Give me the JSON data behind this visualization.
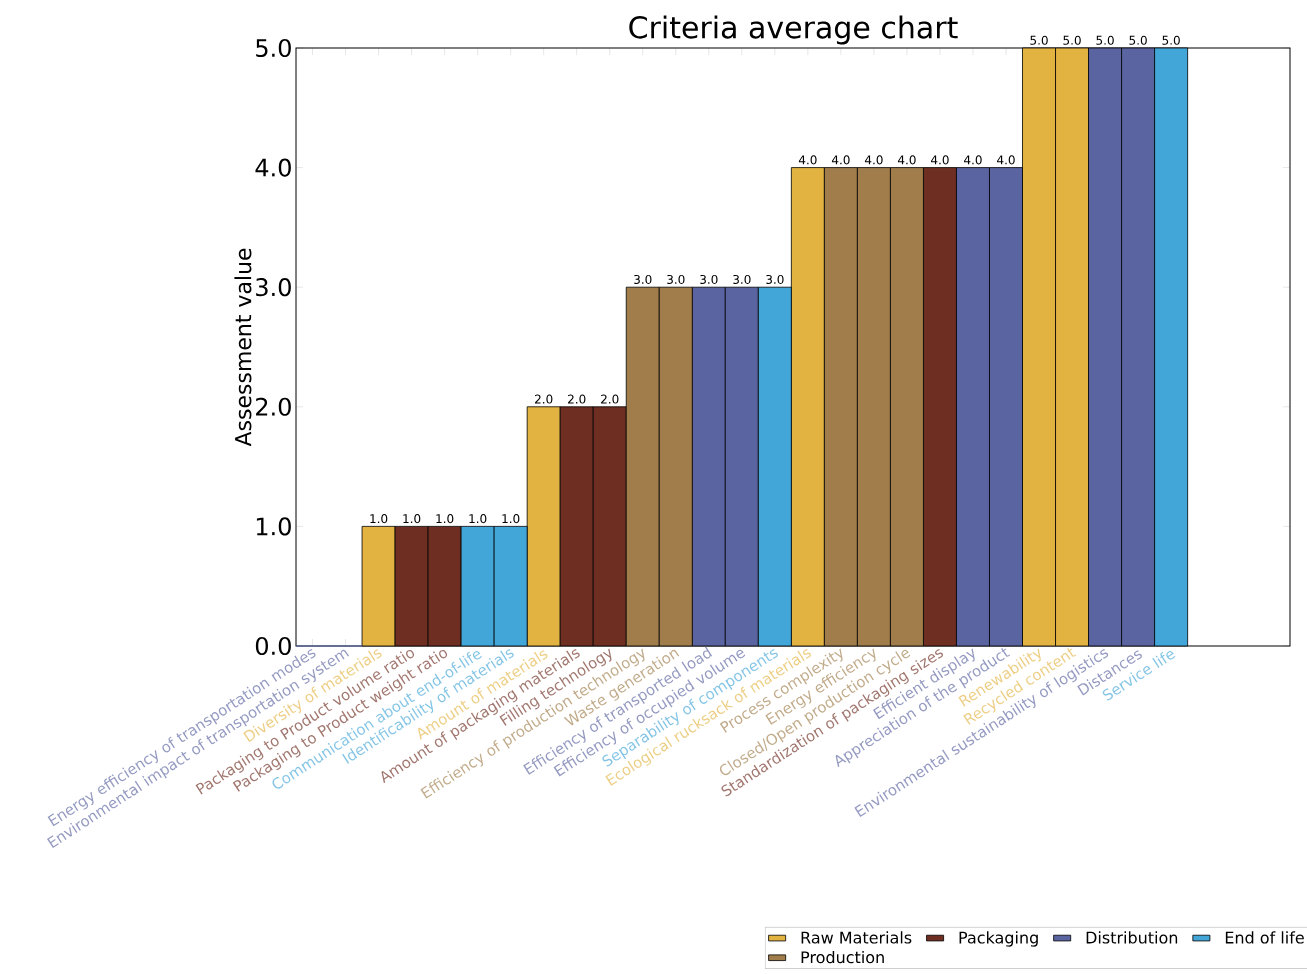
{
  "chart_data": {
    "type": "bar",
    "title": "Criteria average chart",
    "ylabel": "Assessment value",
    "categories": [
      "Energy efficiency of transportation modes",
      "Environmental impact of transportation system",
      "Diversity of materials",
      "Packaging to Product volume ratio",
      "Packaging to Product weight ratio",
      "Communication about end-of-life",
      "Identificability of materials",
      "Amount of materials",
      "Amount of packaging materials",
      "Filling technology",
      "Efficiency of production technology",
      "Waste generation",
      "Efficiency of transported load",
      "Efficiency of occupied volume",
      "Separability of components",
      "Ecological rucksack of materials",
      "Process complexity",
      "Energy efficiency",
      "Closed/Open production cycle",
      "Standardization of packaging sizes",
      "Efficient display",
      "Appreciation of the product",
      "Renewability",
      "Recycled content",
      "Environmental sustainability of logistics",
      "Distances",
      "Service life"
    ],
    "series": [
      {
        "name": "Raw Materials",
        "color": "#e3b341",
        "values": [
          null,
          null,
          1.0,
          null,
          null,
          null,
          null,
          2.0,
          null,
          null,
          null,
          null,
          null,
          null,
          null,
          4.0,
          null,
          null,
          null,
          null,
          null,
          null,
          5.0,
          5.0,
          null,
          null,
          null
        ],
        "value_labels": [
          null,
          null,
          "1.0",
          null,
          null,
          null,
          null,
          "2.0",
          null,
          null,
          null,
          null,
          null,
          null,
          null,
          "4.0",
          null,
          null,
          null,
          null,
          null,
          null,
          "5.0",
          "5.0",
          null,
          null,
          null
        ]
      },
      {
        "name": "Packaging",
        "color": "#6e2e22",
        "values": [
          null,
          null,
          null,
          1.0,
          1.0,
          null,
          null,
          null,
          2.0,
          2.0,
          null,
          null,
          null,
          null,
          null,
          null,
          null,
          null,
          null,
          4.0,
          null,
          null,
          null,
          null,
          null,
          null,
          null
        ],
        "value_labels": [
          null,
          null,
          null,
          "1.0",
          "1.0",
          null,
          null,
          null,
          "2.0",
          "2.0",
          null,
          null,
          null,
          null,
          null,
          null,
          null,
          null,
          null,
          "4.0",
          null,
          null,
          null,
          null,
          null,
          null,
          null
        ]
      },
      {
        "name": "Distribution",
        "color": "#5a64a0",
        "values": [
          0,
          0,
          null,
          null,
          null,
          null,
          null,
          null,
          null,
          null,
          null,
          null,
          3.0,
          3.0,
          null,
          null,
          null,
          null,
          null,
          null,
          4.0,
          4.0,
          null,
          null,
          5.0,
          5.0,
          null
        ],
        "value_labels": [
          null,
          null,
          null,
          null,
          null,
          null,
          null,
          null,
          null,
          null,
          null,
          null,
          "3.0",
          "3.0",
          null,
          null,
          null,
          null,
          null,
          null,
          "4.0",
          "4.0",
          null,
          null,
          "5.0",
          "5.0",
          null
        ]
      },
      {
        "name": "End of life",
        "color": "#42a6d9",
        "values": [
          null,
          null,
          null,
          null,
          null,
          1.0,
          1.0,
          null,
          null,
          null,
          null,
          null,
          null,
          null,
          3.0,
          null,
          null,
          null,
          null,
          null,
          null,
          null,
          null,
          null,
          null,
          null,
          5.0
        ],
        "value_labels": [
          null,
          null,
          null,
          null,
          null,
          "1.0",
          "1.0",
          null,
          null,
          null,
          null,
          null,
          null,
          null,
          "3.0",
          null,
          null,
          null,
          null,
          null,
          null,
          null,
          null,
          null,
          null,
          null,
          "5.0"
        ]
      },
      {
        "name": "Production",
        "color": "#a07d4b",
        "values": [
          null,
          null,
          null,
          null,
          null,
          null,
          null,
          null,
          null,
          null,
          3.0,
          3.0,
          null,
          null,
          null,
          null,
          4.0,
          4.0,
          4.0,
          null,
          null,
          null,
          null,
          null,
          null,
          null,
          null
        ],
        "value_labels": [
          null,
          null,
          null,
          null,
          null,
          null,
          null,
          null,
          null,
          null,
          "3.0",
          "3.0",
          null,
          null,
          null,
          null,
          "4.0",
          "4.0",
          "4.0",
          null,
          null,
          null,
          null,
          null,
          null,
          null,
          null
        ]
      }
    ],
    "ylim": [
      0,
      5
    ],
    "yticks": [
      {
        "value": 0,
        "label": "0.0"
      },
      {
        "value": 1,
        "label": "1.0"
      },
      {
        "value": 2,
        "label": "2.0"
      },
      {
        "value": 3,
        "label": "3.0"
      },
      {
        "value": 4,
        "label": "4.0"
      },
      {
        "value": 5,
        "label": "5.0"
      }
    ],
    "grid": false,
    "legend": "bottom right"
  }
}
